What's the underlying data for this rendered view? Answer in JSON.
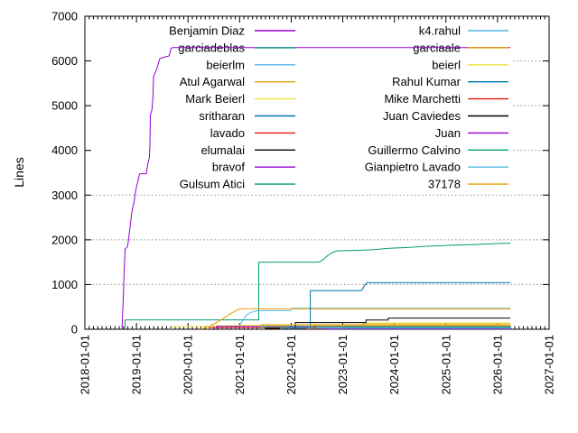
{
  "chart_data": {
    "type": "line",
    "title": "",
    "xlabel": "",
    "ylabel": "Lines",
    "grid": {
      "style": "dotted",
      "color": "#8c8c8c",
      "full_lines_at": [
        1000,
        2000,
        3000
      ],
      "partial_lines_at": [
        4000,
        5000,
        6000
      ]
    },
    "x_axis": {
      "range_years": [
        2018,
        2027
      ],
      "tick_rotation_deg": 90,
      "minor_tick": "monthly",
      "ticks": [
        "2018-01-01",
        "2019-01-01",
        "2020-01-01",
        "2021-01-01",
        "2022-01-01",
        "2023-01-01",
        "2024-01-01",
        "2025-01-01",
        "2026-01-01",
        "2027-01-01"
      ]
    },
    "y_axis": {
      "range": [
        0,
        7000
      ],
      "tick_interval": 1000,
      "ticks": [
        "0",
        "1000",
        "2000",
        "3000",
        "4000",
        "5000",
        "6000",
        "7000"
      ]
    },
    "legend": {
      "position": "top-center",
      "columns": 2,
      "opaque_over_grid": true
    },
    "series": [
      {
        "name": "Benjamin Diaz",
        "color": "#9400d3",
        "points": [
          [
            2018.72,
            0
          ],
          [
            2018.74,
            600
          ],
          [
            2018.76,
            1250
          ],
          [
            2018.78,
            1790
          ],
          [
            2018.83,
            1860
          ],
          [
            2018.88,
            2330
          ],
          [
            2018.91,
            2630
          ],
          [
            2018.95,
            2830
          ],
          [
            2018.99,
            3130
          ],
          [
            2019.02,
            3270
          ],
          [
            2019.06,
            3475
          ],
          [
            2019.19,
            3480
          ],
          [
            2019.22,
            3700
          ],
          [
            2019.25,
            3840
          ],
          [
            2019.26,
            4100
          ],
          [
            2019.27,
            4800
          ],
          [
            2019.3,
            4900
          ],
          [
            2019.32,
            5200
          ],
          [
            2019.33,
            5650
          ],
          [
            2019.37,
            5750
          ],
          [
            2019.41,
            5880
          ],
          [
            2019.45,
            6050
          ],
          [
            2019.55,
            6090
          ],
          [
            2019.63,
            6110
          ],
          [
            2019.67,
            6280
          ],
          [
            2019.7,
            6300
          ],
          [
            2026.25,
            6300
          ]
        ]
      },
      {
        "name": "garciadeblas",
        "color": "#009e73",
        "points": [
          [
            2018.78,
            0
          ],
          [
            2018.78,
            210
          ],
          [
            2021.37,
            210
          ],
          [
            2021.37,
            1500
          ],
          [
            2022.54,
            1500
          ],
          [
            2022.62,
            1560
          ],
          [
            2022.72,
            1660
          ],
          [
            2022.82,
            1725
          ],
          [
            2022.9,
            1755
          ],
          [
            2023.3,
            1765
          ],
          [
            2023.6,
            1780
          ],
          [
            2023.9,
            1810
          ],
          [
            2024.3,
            1830
          ],
          [
            2024.6,
            1855
          ],
          [
            2024.9,
            1865
          ],
          [
            2025.1,
            1880
          ],
          [
            2025.45,
            1890
          ],
          [
            2025.7,
            1900
          ],
          [
            2025.9,
            1910
          ],
          [
            2026.1,
            1920
          ],
          [
            2026.25,
            1925
          ]
        ]
      },
      {
        "name": "beierlm",
        "color": "#56b4e9",
        "points": [
          [
            2020.92,
            0
          ],
          [
            2020.98,
            60
          ],
          [
            2021.05,
            180
          ],
          [
            2021.12,
            300
          ],
          [
            2021.2,
            370
          ],
          [
            2021.28,
            395
          ],
          [
            2021.35,
            415
          ],
          [
            2021.98,
            415
          ],
          [
            2022.02,
            470
          ],
          [
            2026.25,
            470
          ]
        ]
      },
      {
        "name": "Atul Agarwal",
        "color": "#e69f00",
        "points": [
          [
            2020.25,
            0
          ],
          [
            2020.4,
            60
          ],
          [
            2020.6,
            180
          ],
          [
            2020.8,
            330
          ],
          [
            2020.95,
            430
          ],
          [
            2021.0,
            455
          ],
          [
            2026.25,
            455
          ]
        ]
      },
      {
        "name": "Mark Beierl",
        "color": "#f0e442",
        "points": [
          [
            2019.68,
            0
          ],
          [
            2019.68,
            55
          ],
          [
            2020.2,
            65
          ],
          [
            2020.8,
            80
          ],
          [
            2021.2,
            90
          ],
          [
            2026.25,
            90
          ]
        ]
      },
      {
        "name": "sritharan",
        "color": "#0072b2",
        "points": [
          [
            2021.85,
            0
          ],
          [
            2021.85,
            30
          ],
          [
            2026.25,
            30
          ]
        ]
      },
      {
        "name": "lavado",
        "color": "#e51e10",
        "points": [
          [
            2020.42,
            0
          ],
          [
            2020.42,
            40
          ],
          [
            2026.25,
            40
          ]
        ]
      },
      {
        "name": "elumalai",
        "color": "#000000",
        "points": [
          [
            2021.5,
            0
          ],
          [
            2021.5,
            18
          ],
          [
            2026.25,
            18
          ]
        ]
      },
      {
        "name": "bravof",
        "color": "#9400d3",
        "points": [
          [
            2020.55,
            0
          ],
          [
            2020.55,
            62
          ],
          [
            2026.25,
            62
          ]
        ]
      },
      {
        "name": "Gulsum Atici",
        "color": "#009e73",
        "points": [
          [
            2021.4,
            0
          ],
          [
            2021.4,
            55
          ],
          [
            2026.25,
            55
          ]
        ]
      },
      {
        "name": "k4.rahul",
        "color": "#56b4e9",
        "points": [
          [
            2022.5,
            0
          ],
          [
            2022.5,
            45
          ],
          [
            2026.25,
            45
          ]
        ]
      },
      {
        "name": "garciaale",
        "color": "#e69f00",
        "points": [
          [
            2022.4,
            0
          ],
          [
            2022.4,
            80
          ],
          [
            2026.25,
            80
          ]
        ]
      },
      {
        "name": "beierl",
        "color": "#f0e442",
        "points": [
          [
            2022.35,
            0
          ],
          [
            2022.35,
            93
          ],
          [
            2023.36,
            93
          ],
          [
            2023.36,
            141
          ],
          [
            2026.25,
            141
          ]
        ]
      },
      {
        "name": "Rahul Kumar",
        "color": "#0072b2",
        "points": [
          [
            2021.95,
            0
          ],
          [
            2021.95,
            50
          ],
          [
            2022.37,
            50
          ],
          [
            2022.37,
            865
          ],
          [
            2023.37,
            865
          ],
          [
            2023.41,
            960
          ],
          [
            2023.47,
            1040
          ],
          [
            2026.25,
            1040
          ]
        ]
      },
      {
        "name": "Mike Marchetti",
        "color": "#e51e10",
        "points": [
          [
            2022.3,
            0
          ],
          [
            2022.3,
            14
          ],
          [
            2026.25,
            14
          ]
        ]
      },
      {
        "name": "Juan Caviedes",
        "color": "#000000",
        "points": [
          [
            2022.08,
            0
          ],
          [
            2022.08,
            150
          ],
          [
            2023.45,
            150
          ],
          [
            2023.45,
            208
          ],
          [
            2023.88,
            208
          ],
          [
            2023.88,
            250
          ],
          [
            2026.25,
            250
          ]
        ]
      },
      {
        "name": "Juan",
        "color": "#9400d3",
        "points": [
          [
            2022.6,
            0
          ],
          [
            2022.6,
            8
          ],
          [
            2026.25,
            8
          ]
        ]
      },
      {
        "name": "Guillermo Calvino",
        "color": "#009e73",
        "points": [
          [
            2023.0,
            0
          ],
          [
            2023.0,
            34
          ],
          [
            2026.25,
            34
          ]
        ]
      },
      {
        "name": "Gianpietro Lavado",
        "color": "#56b4e9",
        "points": [
          [
            2021.8,
            0
          ],
          [
            2021.8,
            22
          ],
          [
            2026.25,
            22
          ]
        ]
      },
      {
        "name": "37178",
        "color": "#e69f00",
        "points": [
          [
            2021.42,
            0
          ],
          [
            2021.42,
            100
          ],
          [
            2023.4,
            100
          ],
          [
            2023.4,
            120
          ],
          [
            2026.25,
            120
          ]
        ]
      }
    ]
  }
}
